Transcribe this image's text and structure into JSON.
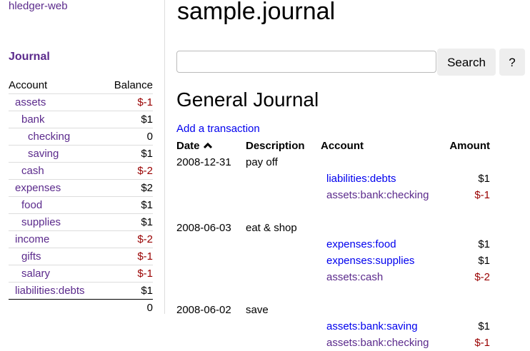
{
  "brand": "hledger-web",
  "title": "sample.journal",
  "sidebar": {
    "journal_link": "Journal",
    "headers": {
      "account": "Account",
      "balance": "Balance"
    },
    "rows": [
      {
        "name": "assets",
        "balance": "$-1",
        "depth": 0
      },
      {
        "name": "bank",
        "balance": "$1",
        "depth": 1
      },
      {
        "name": "checking",
        "balance": "0",
        "depth": 2
      },
      {
        "name": "saving",
        "balance": "$1",
        "depth": 2
      },
      {
        "name": "cash",
        "balance": "$-2",
        "depth": 1
      },
      {
        "name": "expenses",
        "balance": "$2",
        "depth": 0
      },
      {
        "name": "food",
        "balance": "$1",
        "depth": 1
      },
      {
        "name": "supplies",
        "balance": "$1",
        "depth": 1
      },
      {
        "name": "income",
        "balance": "$-2",
        "depth": 0
      },
      {
        "name": "gifts",
        "balance": "$-1",
        "depth": 1
      },
      {
        "name": "salary",
        "balance": "$-1",
        "depth": 1
      },
      {
        "name": "liabilities:debts",
        "balance": "$1",
        "depth": 0
      }
    ],
    "total": "0"
  },
  "search": {
    "value": "",
    "button": "Search",
    "help": "?"
  },
  "journal": {
    "heading": "General Journal",
    "add_link": "Add a transaction",
    "headers": {
      "date": "Date",
      "sort_icon": "chevron-up",
      "description": "Description",
      "account": "Account",
      "amount": "Amount"
    },
    "transactions": [
      {
        "date": "2008-12-31",
        "description": "pay off",
        "postings": [
          {
            "account": "liabilities:debts",
            "amount": "$1",
            "visited": false
          },
          {
            "account": "assets:bank:checking",
            "amount": "$-1",
            "visited": true
          }
        ]
      },
      {
        "date": "2008-06-03",
        "description": "eat & shop",
        "postings": [
          {
            "account": "expenses:food",
            "amount": "$1",
            "visited": false
          },
          {
            "account": "expenses:supplies",
            "amount": "$1",
            "visited": false
          },
          {
            "account": "assets:cash",
            "amount": "$-2",
            "visited": true
          }
        ]
      },
      {
        "date": "2008-06-02",
        "description": "save",
        "postings": [
          {
            "account": "assets:bank:saving",
            "amount": "$1",
            "visited": false
          },
          {
            "account": "assets:bank:checking",
            "amount": "$-1",
            "visited": true
          }
        ]
      }
    ]
  },
  "colors": {
    "visited": "#5b2a8c",
    "link": "#0000ee",
    "negative": "#990000"
  }
}
